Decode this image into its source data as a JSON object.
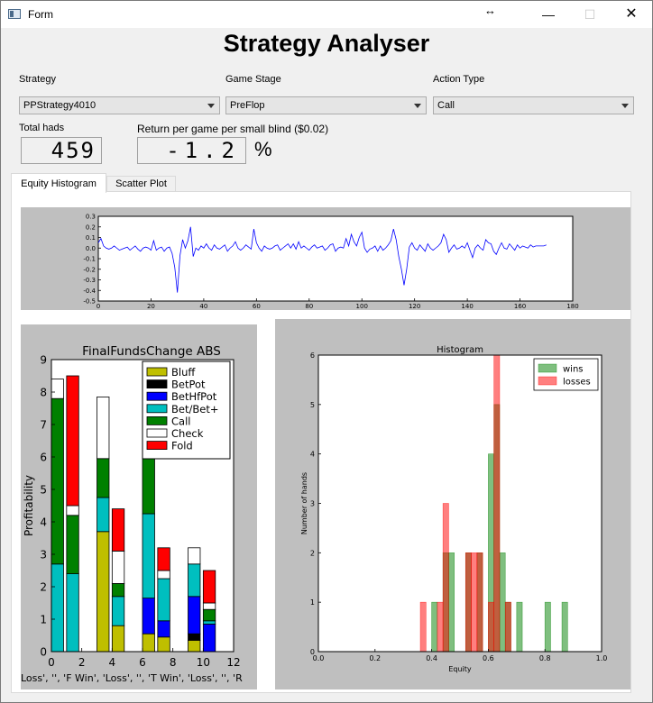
{
  "window": {
    "title": "Form",
    "minimize_glyph": "—",
    "maximize_glyph": "☐",
    "close_glyph": "✕",
    "resize_glyph": "↔"
  },
  "app_title": "Strategy Analyser",
  "controls": {
    "strategy_label": "Strategy",
    "strategy_value": "PPStrategy4010",
    "game_stage_label": "Game Stage",
    "game_stage_value": "PreFlop",
    "action_type_label": "Action Type",
    "action_type_value": "Call"
  },
  "stats": {
    "total_hands_label": "Total hads",
    "total_hands_value": "459",
    "return_label": "Return per game per small blind ($0.02)",
    "return_value": "-1.2",
    "return_unit": "%"
  },
  "tabs": [
    {
      "label": "Equity Histogram",
      "active": true
    },
    {
      "label": "Scatter Plot",
      "active": false
    }
  ],
  "chart_data": [
    {
      "type": "line",
      "title": "",
      "xlim": [
        0,
        180
      ],
      "ylim": [
        -0.5,
        0.3
      ],
      "xticks": [
        "0",
        "20",
        "40",
        "60",
        "80",
        "100",
        "120",
        "140",
        "160",
        "180"
      ],
      "yticks": [
        "0.3",
        "0.2",
        "0.1",
        "0.0",
        "-0.1",
        "-0.2",
        "-0.3",
        "-0.4",
        "-0.5"
      ],
      "color": "#0000ff",
      "values": [
        0.05,
        0.09,
        0.02,
        0,
        -0.01,
        0,
        0.02,
        0,
        -0.02,
        -0.01,
        0,
        0.01,
        -0.02,
        0,
        0.02,
        -0.01,
        -0.03,
        0,
        0.01,
        0,
        -0.02,
        0.07,
        -0.02,
        0,
        0.01,
        -0.03,
        0,
        0.01,
        -0.05,
        -0.18,
        -0.42,
        -0.07,
        0.08,
        0,
        0.07,
        0.2,
        -0.08,
        0,
        -0.02,
        0.02,
        0,
        0.04,
        0,
        -0.02,
        0.03,
        0,
        -0.01,
        0.01,
        0.03,
        -0.03,
        0,
        0.02,
        0.06,
        0,
        -0.02,
        0,
        0.03,
        0.01,
        -0.01,
        0.18,
        0.05,
        0,
        -0.03,
        0.02,
        0,
        -0.01,
        0,
        0.02,
        0.03,
        -0.02,
        0,
        0.02,
        0.04,
        0,
        0.04,
        -0.01,
        0.06,
        0,
        0.02,
        0,
        -0.02,
        0.01,
        0.03,
        0,
        0.01,
        0.02,
        -0.02,
        0,
        0.03,
        0.04,
        -0.03,
        0,
        0.01,
        0,
        0.09,
        0.02,
        0.13,
        0.06,
        0.02,
        0.1,
        0.15,
        0,
        -0.04,
        -0.01,
        0,
        0.02,
        -0.03,
        0.02,
        -0.02,
        0,
        0.03,
        0.07,
        0.18,
        0.08,
        -0.08,
        -0.2,
        -0.35,
        -0.2,
        0.01,
        0.05,
        0,
        -0.02,
        0.03,
        0,
        -0.03,
        0.04,
        0,
        -0.02,
        0,
        0.02,
        0.05,
        0.13,
        0.08,
        -0.04,
        0,
        0.03,
        -0.01,
        0,
        0.02,
        0,
        0.05,
        -0.02,
        -0.09,
        0,
        0.03,
        0,
        -0.02,
        0.08,
        0.05,
        0.04,
        -0.03,
        -0.06,
        0,
        0.05,
        0,
        -0.01,
        0.04,
        0.01,
        -0.02,
        0.03,
        0,
        0.02,
        0.01,
        0,
        0.03,
        0.01,
        0.02,
        0.02,
        0.02,
        0.02,
        0.03
      ]
    },
    {
      "type": "bar",
      "stacked": true,
      "title": "FinalFundsChange ABS",
      "ylabel": "Profitability",
      "xlabel_truncated": "Loss', '', 'F Win', 'Loss', '', 'T Win', 'Loss', '', 'R",
      "xlim": [
        0,
        12
      ],
      "ylim": [
        0,
        9
      ],
      "xticks": [
        "0",
        "2",
        "4",
        "6",
        "8",
        "10",
        "12"
      ],
      "yticks": [
        "0",
        "1",
        "2",
        "3",
        "4",
        "5",
        "6",
        "7",
        "8",
        "9"
      ],
      "legend_position": "top-right",
      "x": [
        0,
        1,
        3,
        4,
        6,
        7,
        9,
        10
      ],
      "series": [
        {
          "name": "Bluff",
          "color": "#bfbf00",
          "values": [
            0,
            0,
            3.7,
            0.8,
            0.55,
            0.45,
            0.35,
            0
          ]
        },
        {
          "name": "BetPot",
          "color": "#000000",
          "values": [
            0,
            0,
            0,
            0,
            0,
            0,
            0.2,
            0
          ]
        },
        {
          "name": "BetHfPot",
          "color": "#0000ff",
          "values": [
            0,
            0,
            0,
            0,
            1.1,
            0.5,
            1.15,
            0.85
          ]
        },
        {
          "name": "Bet/Bet+",
          "color": "#00bfbf",
          "values": [
            2.7,
            2.4,
            1.05,
            0.9,
            2.6,
            1.3,
            1.0,
            0.1
          ]
        },
        {
          "name": "Call",
          "color": "#008000",
          "values": [
            5.1,
            1.8,
            1.2,
            0.4,
            2.0,
            0,
            0,
            0.35
          ]
        },
        {
          "name": "Check",
          "color": "#ffffff",
          "values": [
            0.6,
            0.3,
            1.9,
            1.0,
            0.9,
            0.25,
            0.5,
            0.2
          ]
        },
        {
          "name": "Fold",
          "color": "#ff0000",
          "values": [
            0,
            4.0,
            0,
            1.3,
            0.6,
            0.7,
            0,
            1.0
          ]
        }
      ]
    },
    {
      "type": "bar",
      "title": "Histogram",
      "xlabel": "Equity",
      "ylabel": "Number of hands",
      "xlim": [
        0,
        1
      ],
      "ylim": [
        0,
        6
      ],
      "xticks": [
        "0.0",
        "0.2",
        "0.4",
        "0.6",
        "0.8",
        "1.0"
      ],
      "yticks": [
        "0",
        "1",
        "2",
        "3",
        "4",
        "5",
        "6"
      ],
      "legend_position": "top-right",
      "bin_width": 0.02,
      "series": [
        {
          "name": "wins",
          "color": "#008000",
          "alpha": 0.5,
          "x": [
            0.4,
            0.44,
            0.46,
            0.52,
            0.56,
            0.6,
            0.62,
            0.64,
            0.66,
            0.7,
            0.8,
            0.86
          ],
          "values": [
            1,
            2,
            2,
            2,
            2,
            4,
            5,
            2,
            1,
            1,
            1,
            1
          ]
        },
        {
          "name": "losses",
          "color": "#ff0000",
          "alpha": 0.5,
          "x": [
            0.36,
            0.42,
            0.44,
            0.52,
            0.54,
            0.56,
            0.6,
            0.62,
            0.66
          ],
          "values": [
            1,
            1,
            3,
            2,
            2,
            2,
            1,
            6,
            1
          ]
        }
      ]
    }
  ]
}
